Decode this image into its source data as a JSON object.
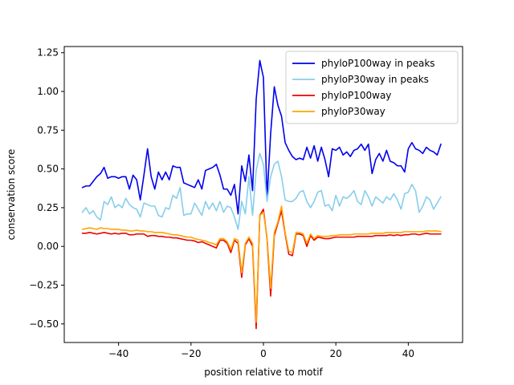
{
  "chart_data": {
    "type": "line",
    "title": "",
    "xlabel": "position relative to motif",
    "ylabel": "conservation score",
    "xlim": [
      -55,
      55
    ],
    "ylim": [
      -0.62,
      1.29
    ],
    "x_ticks": [
      -40,
      -20,
      0,
      20,
      40
    ],
    "x_tick_labels": [
      "−40",
      "−20",
      "0",
      "20",
      "40"
    ],
    "y_ticks": [
      -0.5,
      -0.25,
      0.0,
      0.25,
      0.5,
      0.75,
      1.0,
      1.25
    ],
    "y_tick_labels": [
      "−0.50",
      "−0.25",
      "0.00",
      "0.25",
      "0.50",
      "0.75",
      "1.00",
      "1.25"
    ],
    "legend_position": "top-right",
    "x_start": -50,
    "x_step": 1,
    "series": [
      {
        "name": "phyloP100way in peaks",
        "color": "#0000ee",
        "values": [
          0.38,
          0.39,
          0.39,
          0.42,
          0.45,
          0.47,
          0.51,
          0.44,
          0.45,
          0.45,
          0.44,
          0.45,
          0.45,
          0.37,
          0.46,
          0.43,
          0.3,
          0.46,
          0.63,
          0.45,
          0.37,
          0.48,
          0.43,
          0.48,
          0.43,
          0.52,
          0.51,
          0.51,
          0.41,
          0.4,
          0.39,
          0.38,
          0.43,
          0.37,
          0.49,
          0.5,
          0.51,
          0.53,
          0.46,
          0.37,
          0.37,
          0.33,
          0.4,
          0.21,
          0.52,
          0.42,
          0.59,
          0.36,
          0.95,
          1.2,
          1.09,
          0.31,
          0.73,
          1.03,
          0.91,
          0.84,
          0.67,
          0.62,
          0.58,
          0.56,
          0.57,
          0.56,
          0.64,
          0.57,
          0.65,
          0.55,
          0.64,
          0.56,
          0.45,
          0.63,
          0.62,
          0.64,
          0.59,
          0.61,
          0.58,
          0.62,
          0.63,
          0.66,
          0.62,
          0.66,
          0.47,
          0.56,
          0.6,
          0.55,
          0.62,
          0.55,
          0.54,
          0.52,
          0.52,
          0.48,
          0.63,
          0.67,
          0.63,
          0.62,
          0.6,
          0.64,
          0.62,
          0.61,
          0.59,
          0.66
        ]
      },
      {
        "name": "phyloP30way in peaks",
        "color": "#87ceeb",
        "values": [
          0.22,
          0.25,
          0.21,
          0.23,
          0.19,
          0.17,
          0.29,
          0.27,
          0.32,
          0.25,
          0.27,
          0.25,
          0.31,
          0.27,
          0.25,
          0.24,
          0.19,
          0.28,
          0.27,
          0.26,
          0.26,
          0.2,
          0.19,
          0.25,
          0.24,
          0.33,
          0.31,
          0.38,
          0.2,
          0.21,
          0.21,
          0.28,
          0.24,
          0.2,
          0.29,
          0.24,
          0.28,
          0.23,
          0.29,
          0.22,
          0.26,
          0.25,
          0.19,
          0.11,
          0.29,
          0.21,
          0.45,
          0.2,
          0.49,
          0.6,
          0.53,
          0.29,
          0.45,
          0.53,
          0.55,
          0.45,
          0.3,
          0.29,
          0.29,
          0.31,
          0.35,
          0.36,
          0.29,
          0.25,
          0.29,
          0.35,
          0.36,
          0.26,
          0.27,
          0.23,
          0.33,
          0.26,
          0.32,
          0.31,
          0.33,
          0.36,
          0.29,
          0.27,
          0.36,
          0.32,
          0.26,
          0.32,
          0.3,
          0.28,
          0.32,
          0.3,
          0.34,
          0.3,
          0.24,
          0.34,
          0.35,
          0.4,
          0.36,
          0.22,
          0.26,
          0.32,
          0.3,
          0.24,
          0.28,
          0.32
        ]
      },
      {
        "name": "phyloP100way",
        "color": "#ee0000",
        "values": [
          0.085,
          0.085,
          0.09,
          0.085,
          0.08,
          0.085,
          0.09,
          0.085,
          0.08,
          0.085,
          0.08,
          0.085,
          0.085,
          0.075,
          0.075,
          0.08,
          0.08,
          0.08,
          0.065,
          0.07,
          0.07,
          0.065,
          0.065,
          0.06,
          0.06,
          0.055,
          0.055,
          0.05,
          0.045,
          0.04,
          0.04,
          0.035,
          0.025,
          0.03,
          0.02,
          0.01,
          0.0,
          -0.01,
          0.04,
          0.04,
          0.02,
          -0.04,
          0.04,
          0.02,
          -0.2,
          0.01,
          0.05,
          0.0,
          -0.53,
          0.2,
          0.24,
          0.05,
          -0.32,
          0.07,
          0.15,
          0.23,
          0.08,
          -0.05,
          -0.06,
          0.08,
          0.08,
          0.07,
          0.0,
          0.07,
          0.04,
          0.06,
          0.055,
          0.05,
          0.05,
          0.055,
          0.06,
          0.06,
          0.06,
          0.06,
          0.06,
          0.06,
          0.065,
          0.065,
          0.065,
          0.065,
          0.065,
          0.07,
          0.07,
          0.07,
          0.07,
          0.075,
          0.07,
          0.075,
          0.07,
          0.075,
          0.075,
          0.08,
          0.08,
          0.075,
          0.08,
          0.085,
          0.08,
          0.08,
          0.08,
          0.08
        ]
      },
      {
        "name": "phyloP30way",
        "color": "#ffa500",
        "values": [
          0.11,
          0.115,
          0.12,
          0.115,
          0.11,
          0.12,
          0.115,
          0.115,
          0.11,
          0.11,
          0.11,
          0.105,
          0.105,
          0.1,
          0.1,
          0.105,
          0.1,
          0.1,
          0.095,
          0.095,
          0.09,
          0.09,
          0.09,
          0.085,
          0.08,
          0.075,
          0.075,
          0.07,
          0.065,
          0.06,
          0.06,
          0.05,
          0.045,
          0.04,
          0.035,
          0.025,
          0.02,
          0.01,
          0.05,
          0.05,
          0.03,
          -0.02,
          0.05,
          0.04,
          -0.17,
          0.02,
          0.06,
          0.02,
          -0.49,
          0.2,
          0.22,
          0.06,
          -0.27,
          0.09,
          0.16,
          0.26,
          0.09,
          -0.03,
          -0.04,
          0.09,
          0.09,
          0.08,
          0.02,
          0.08,
          0.05,
          0.07,
          0.065,
          0.065,
          0.065,
          0.07,
          0.07,
          0.075,
          0.075,
          0.075,
          0.075,
          0.08,
          0.08,
          0.08,
          0.08,
          0.08,
          0.085,
          0.085,
          0.085,
          0.085,
          0.09,
          0.09,
          0.09,
          0.09,
          0.09,
          0.095,
          0.095,
          0.095,
          0.095,
          0.095,
          0.095,
          0.1,
          0.1,
          0.1,
          0.1,
          0.095
        ]
      }
    ]
  }
}
